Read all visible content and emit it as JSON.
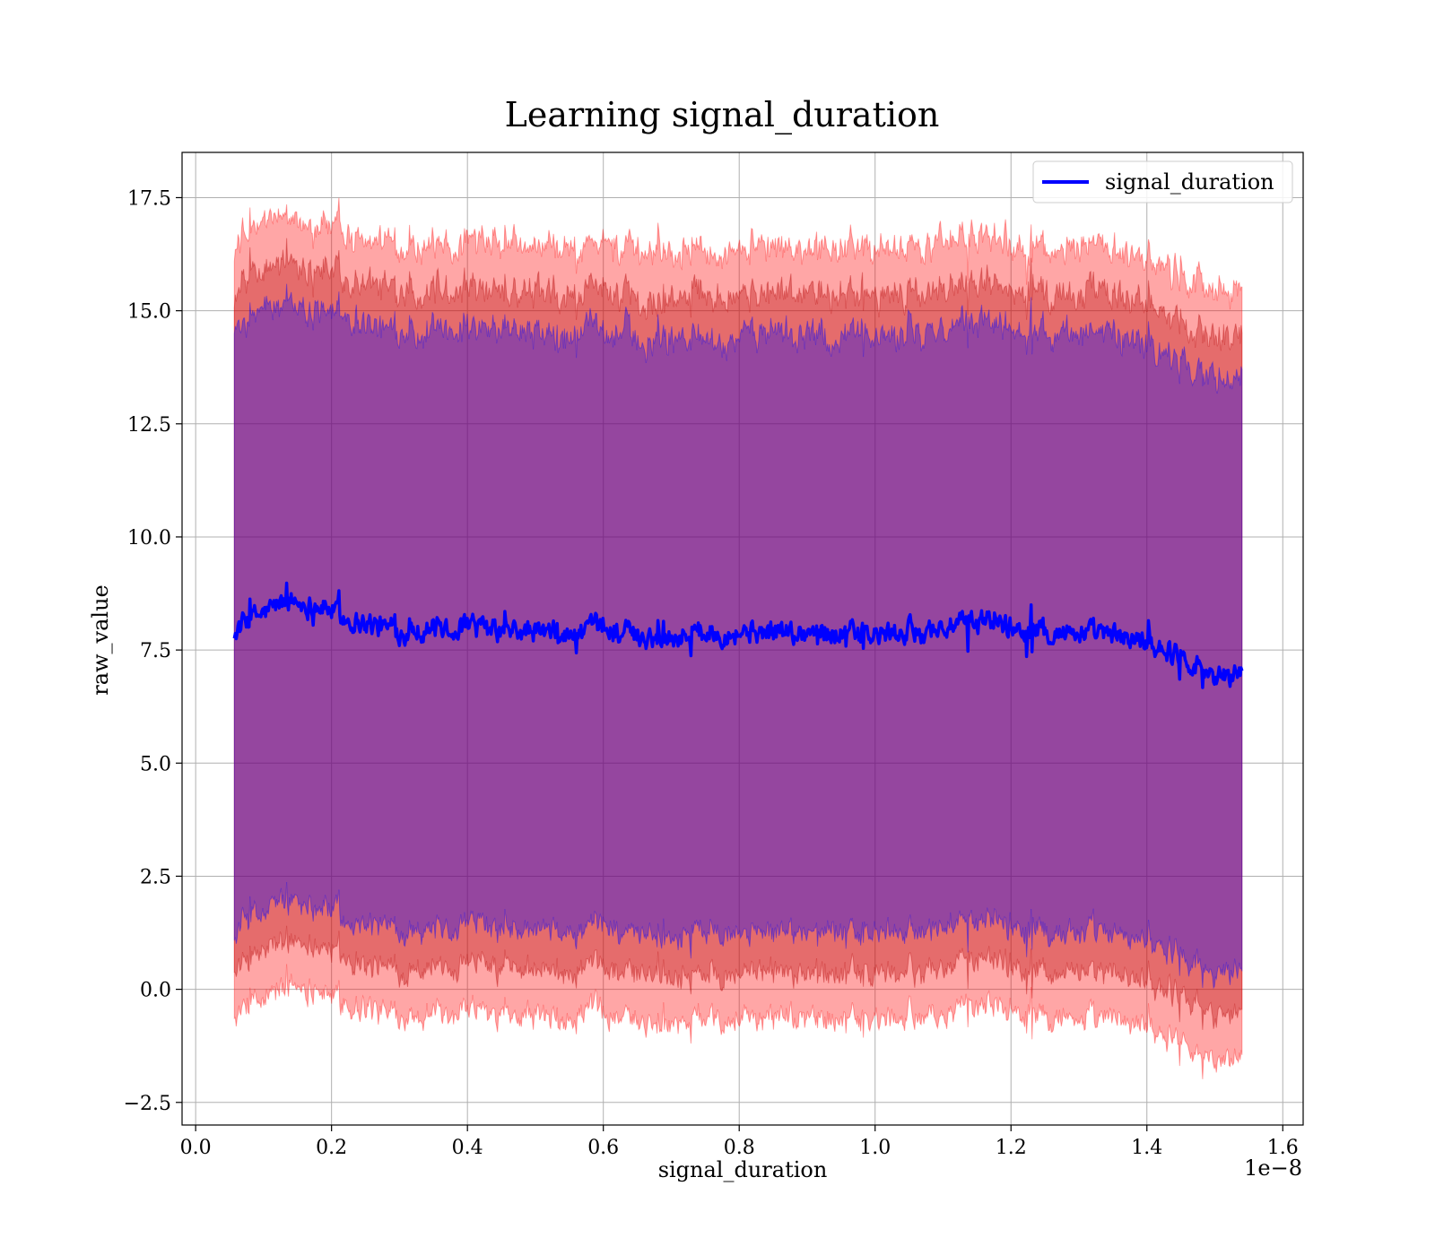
{
  "chart_data": {
    "type": "line",
    "title": "Learning signal_duration",
    "xlabel": "signal_duration",
    "ylabel": "raw_value",
    "x_offset_label": "1e−8",
    "xlim": [
      -0.02,
      1.63
    ],
    "ylim": [
      -3.0,
      18.5
    ],
    "xticks": [
      0.0,
      0.2,
      0.4,
      0.6,
      0.8,
      1.0,
      1.2,
      1.4,
      1.6
    ],
    "xtick_labels": [
      "0.0",
      "0.2",
      "0.4",
      "0.6",
      "0.8",
      "1.0",
      "1.2",
      "1.4",
      "1.6"
    ],
    "yticks": [
      -2.5,
      0.0,
      2.5,
      5.0,
      7.5,
      10.0,
      12.5,
      15.0,
      17.5
    ],
    "ytick_labels": [
      "−2.5",
      "0.0",
      "2.5",
      "5.0",
      "7.5",
      "10.0",
      "12.5",
      "15.0",
      "17.5"
    ],
    "grid": true,
    "legend_position": "top-right",
    "x_range": [
      0.057,
      1.54
    ],
    "series": [
      {
        "name": "signal_duration",
        "color": "#0000ff",
        "x": [
          0.057,
          0.08,
          0.1,
          0.12,
          0.14,
          0.16,
          0.18,
          0.2,
          0.22,
          0.25,
          0.3,
          0.35,
          0.4,
          0.45,
          0.5,
          0.55,
          0.6,
          0.65,
          0.7,
          0.75,
          0.8,
          0.85,
          0.9,
          0.95,
          1.0,
          1.05,
          1.1,
          1.15,
          1.17,
          1.2,
          1.25,
          1.3,
          1.35,
          1.4,
          1.43,
          1.46,
          1.49,
          1.52,
          1.54
        ],
        "y": [
          7.9,
          8.2,
          8.3,
          8.5,
          8.6,
          8.5,
          8.5,
          8.4,
          8.2,
          8.1,
          7.9,
          8.0,
          8.0,
          7.9,
          7.9,
          7.8,
          8.0,
          7.8,
          7.8,
          7.9,
          7.9,
          7.9,
          7.9,
          7.9,
          7.8,
          7.9,
          8.0,
          8.1,
          8.2,
          8.0,
          7.9,
          7.9,
          7.8,
          7.7,
          7.5,
          7.3,
          7.0,
          6.9,
          7.1
        ]
      }
    ],
    "bands": [
      {
        "color": "#8b0000",
        "lower_offset": 7.5,
        "upper_offset": 7.5
      },
      {
        "color": "#ff0000",
        "lower_offset": 8.5,
        "upper_offset": 8.5
      },
      {
        "color": "#0000ff",
        "lower_offset": 6.6,
        "upper_offset": 6.6
      }
    ],
    "band_alpha": 0.35
  }
}
